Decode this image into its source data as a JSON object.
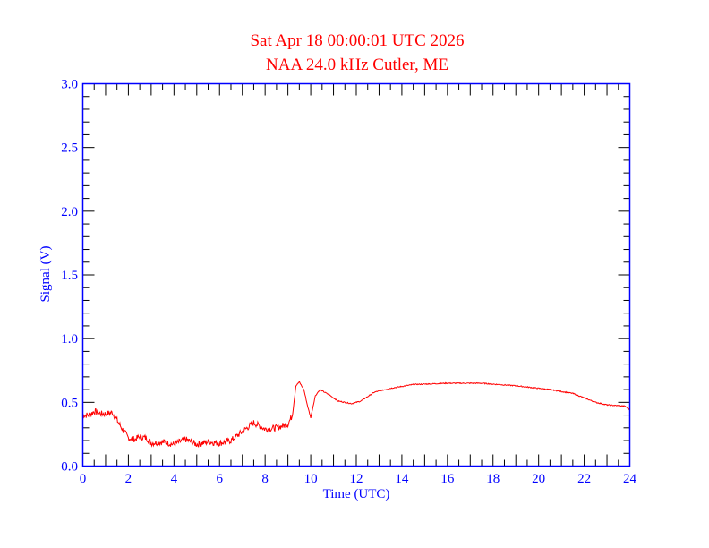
{
  "chart_data": {
    "type": "line",
    "title": "Sat Apr 18 00:00:01 UTC 2026",
    "subtitle": "NAA 24.0 kHz Cutler, ME",
    "xlabel": "Time (UTC)",
    "ylabel": "Signal (V)",
    "xlim": [
      0,
      24
    ],
    "ylim": [
      0,
      3.0
    ],
    "xticks": [
      "0",
      "2",
      "4",
      "6",
      "8",
      "10",
      "12",
      "14",
      "16",
      "18",
      "20",
      "22",
      "24"
    ],
    "yticks": [
      "0.0",
      "0.5",
      "1.0",
      "1.5",
      "2.0",
      "2.5",
      "3.0"
    ],
    "grid": false,
    "colors": {
      "title": "#ff0000",
      "axes": "#0000ff",
      "line": "#ff0000",
      "ticks": "#000000"
    },
    "series": [
      {
        "name": "Signal",
        "x": [
          0,
          0.3,
          0.5,
          0.8,
          1.0,
          1.3,
          1.5,
          1.7,
          2.0,
          2.3,
          2.5,
          2.8,
          3.0,
          3.5,
          4.0,
          4.5,
          5.0,
          5.5,
          6.0,
          6.5,
          7.0,
          7.5,
          8.0,
          8.5,
          9.0,
          9.2,
          9.35,
          9.5,
          9.7,
          9.85,
          10.0,
          10.2,
          10.4,
          10.6,
          10.8,
          11.2,
          11.8,
          12.2,
          12.8,
          13.5,
          14.5,
          16.0,
          17.5,
          19.0,
          20.5,
          21.5,
          22.5,
          23.0,
          23.8,
          24.0
        ],
        "y": [
          0.4,
          0.4,
          0.43,
          0.41,
          0.41,
          0.42,
          0.36,
          0.3,
          0.22,
          0.21,
          0.23,
          0.22,
          0.18,
          0.19,
          0.17,
          0.21,
          0.17,
          0.19,
          0.18,
          0.2,
          0.27,
          0.34,
          0.29,
          0.3,
          0.33,
          0.4,
          0.63,
          0.66,
          0.6,
          0.48,
          0.38,
          0.55,
          0.6,
          0.58,
          0.56,
          0.51,
          0.49,
          0.51,
          0.58,
          0.61,
          0.64,
          0.65,
          0.65,
          0.63,
          0.6,
          0.57,
          0.5,
          0.48,
          0.47,
          0.44
        ]
      }
    ]
  }
}
